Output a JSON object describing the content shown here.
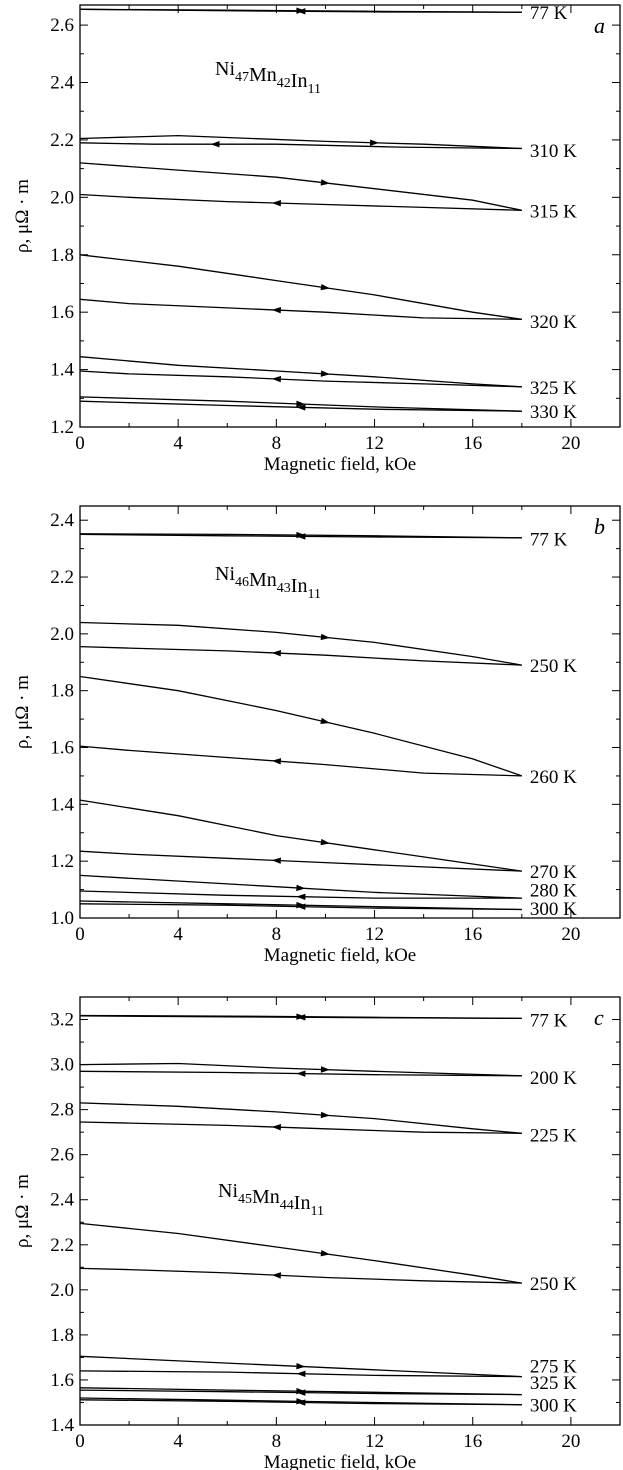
{
  "chart_data": [
    {
      "panel": "a",
      "type": "line",
      "compound": {
        "parts": [
          [
            "Ni",
            "47"
          ],
          [
            "Mn",
            "42"
          ],
          [
            "In",
            "11"
          ]
        ]
      },
      "xlabel": "Magnetic field, kOe",
      "ylabel": "ρ, μΩ · m",
      "xlim": [
        0,
        22
      ],
      "ylim": [
        1.2,
        2.67
      ],
      "xticks": [
        0,
        4,
        8,
        12,
        16,
        20
      ],
      "yticks": [
        1.2,
        1.4,
        1.6,
        1.8,
        2.0,
        2.2,
        2.4,
        2.6
      ],
      "series": [
        {
          "name": "77 K",
          "up": [
            [
              0,
              2.655
            ],
            [
              6,
              2.652
            ],
            [
              12,
              2.648
            ],
            [
              18,
              2.645
            ]
          ],
          "down": [
            [
              18,
              2.645
            ],
            [
              12,
              2.646
            ],
            [
              6,
              2.65
            ],
            [
              0,
              2.655
            ]
          ],
          "label_y": 2.645
        },
        {
          "name": "310 K",
          "up": [
            [
              0,
              2.205
            ],
            [
              4,
              2.215
            ],
            [
              10,
              2.195
            ],
            [
              14,
              2.185
            ],
            [
              18,
              2.17
            ]
          ],
          "down": [
            [
              18,
              2.17
            ],
            [
              13,
              2.175
            ],
            [
              8,
              2.185
            ],
            [
              3,
              2.185
            ],
            [
              0,
              2.19
            ]
          ],
          "label_y": 2.165
        },
        {
          "name": "315 K",
          "up": [
            [
              0,
              2.12
            ],
            [
              4,
              2.095
            ],
            [
              8,
              2.07
            ],
            [
              12,
              2.03
            ],
            [
              16,
              1.99
            ],
            [
              18,
              1.955
            ]
          ],
          "down": [
            [
              18,
              1.955
            ],
            [
              14,
              1.965
            ],
            [
              10,
              1.975
            ],
            [
              6,
              1.985
            ],
            [
              2,
              2.0
            ],
            [
              0,
              2.01
            ]
          ],
          "label_y": 1.955
        },
        {
          "name": "320 K",
          "up": [
            [
              0,
              1.8
            ],
            [
              4,
              1.76
            ],
            [
              8,
              1.71
            ],
            [
              12,
              1.66
            ],
            [
              16,
              1.6
            ],
            [
              18,
              1.575
            ]
          ],
          "down": [
            [
              18,
              1.575
            ],
            [
              14,
              1.58
            ],
            [
              10,
              1.6
            ],
            [
              6,
              1.615
            ],
            [
              2,
              1.63
            ],
            [
              0,
              1.645
            ]
          ],
          "label_y": 1.57
        },
        {
          "name": "325 K",
          "up": [
            [
              0,
              1.445
            ],
            [
              4,
              1.415
            ],
            [
              8,
              1.395
            ],
            [
              12,
              1.375
            ],
            [
              16,
              1.35
            ],
            [
              18,
              1.34
            ]
          ],
          "down": [
            [
              18,
              1.34
            ],
            [
              14,
              1.35
            ],
            [
              10,
              1.36
            ],
            [
              6,
              1.375
            ],
            [
              2,
              1.385
            ],
            [
              0,
              1.395
            ]
          ],
          "label_y": 1.34
        },
        {
          "name": "330 K",
          "up": [
            [
              0,
              1.305
            ],
            [
              6,
              1.29
            ],
            [
              12,
              1.27
            ],
            [
              18,
              1.255
            ]
          ],
          "down": [
            [
              18,
              1.255
            ],
            [
              12,
              1.262
            ],
            [
              6,
              1.275
            ],
            [
              0,
              1.29
            ]
          ],
          "label_y": 1.255
        }
      ]
    },
    {
      "panel": "b",
      "type": "line",
      "compound": {
        "parts": [
          [
            "Ni",
            "46"
          ],
          [
            "Mn",
            "43"
          ],
          [
            "In",
            "11"
          ]
        ]
      },
      "xlabel": "Magnetic field, kOe",
      "ylabel": "ρ, μΩ · m",
      "xlim": [
        0,
        22
      ],
      "ylim": [
        1.0,
        2.45
      ],
      "xticks": [
        0,
        4,
        8,
        12,
        16,
        20
      ],
      "yticks": [
        1.0,
        1.2,
        1.4,
        1.6,
        1.8,
        2.0,
        2.2,
        2.4
      ],
      "series": [
        {
          "name": "77 K",
          "up": [
            [
              0,
              2.352
            ],
            [
              6,
              2.35
            ],
            [
              12,
              2.345
            ],
            [
              18,
              2.338
            ]
          ],
          "down": [
            [
              18,
              2.338
            ],
            [
              12,
              2.341
            ],
            [
              6,
              2.345
            ],
            [
              0,
              2.35
            ]
          ],
          "label_y": 2.335
        },
        {
          "name": "250 K",
          "up": [
            [
              0,
              2.04
            ],
            [
              4,
              2.03
            ],
            [
              8,
              2.005
            ],
            [
              12,
              1.97
            ],
            [
              16,
              1.92
            ],
            [
              18,
              1.89
            ]
          ],
          "down": [
            [
              18,
              1.89
            ],
            [
              14,
              1.905
            ],
            [
              10,
              1.925
            ],
            [
              6,
              1.94
            ],
            [
              2,
              1.95
            ],
            [
              0,
              1.955
            ]
          ],
          "label_y": 1.89
        },
        {
          "name": "260 K",
          "up": [
            [
              0,
              1.85
            ],
            [
              4,
              1.8
            ],
            [
              8,
              1.73
            ],
            [
              12,
              1.65
            ],
            [
              16,
              1.56
            ],
            [
              18,
              1.5
            ]
          ],
          "down": [
            [
              18,
              1.5
            ],
            [
              14,
              1.51
            ],
            [
              10,
              1.54
            ],
            [
              6,
              1.565
            ],
            [
              2,
              1.59
            ],
            [
              0,
              1.605
            ]
          ],
          "label_y": 1.5
        },
        {
          "name": "270 K",
          "up": [
            [
              0,
              1.415
            ],
            [
              4,
              1.36
            ],
            [
              8,
              1.29
            ],
            [
              12,
              1.24
            ],
            [
              16,
              1.19
            ],
            [
              18,
              1.165
            ]
          ],
          "down": [
            [
              18,
              1.165
            ],
            [
              14,
              1.18
            ],
            [
              10,
              1.195
            ],
            [
              6,
              1.21
            ],
            [
              2,
              1.225
            ],
            [
              0,
              1.235
            ]
          ],
          "label_y": 1.165
        },
        {
          "name": "280 K",
          "up": [
            [
              0,
              1.15
            ],
            [
              6,
              1.12
            ],
            [
              12,
              1.09
            ],
            [
              18,
              1.07
            ]
          ],
          "down": [
            [
              18,
              1.07
            ],
            [
              12,
              1.07
            ],
            [
              6,
              1.08
            ],
            [
              0,
              1.095
            ]
          ],
          "label_y": 1.1
        },
        {
          "name": "300 K",
          "up": [
            [
              0,
              1.06
            ],
            [
              6,
              1.05
            ],
            [
              12,
              1.04
            ],
            [
              18,
              1.03
            ]
          ],
          "down": [
            [
              18,
              1.03
            ],
            [
              12,
              1.035
            ],
            [
              6,
              1.045
            ],
            [
              0,
              1.05
            ]
          ],
          "label_y": 1.035
        }
      ]
    },
    {
      "panel": "c",
      "type": "line",
      "compound": {
        "parts": [
          [
            "Ni",
            "45"
          ],
          [
            "Mn",
            "44"
          ],
          [
            "In",
            "11"
          ]
        ]
      },
      "xlabel": "Magnetic field, kOe",
      "ylabel": "ρ, μΩ · m",
      "xlim": [
        0,
        22
      ],
      "ylim": [
        1.4,
        3.3
      ],
      "xticks": [
        0,
        4,
        8,
        12,
        16,
        20
      ],
      "yticks": [
        1.4,
        1.6,
        1.8,
        2.0,
        2.2,
        2.4,
        2.6,
        2.8,
        3.0,
        3.2
      ],
      "series": [
        {
          "name": "77 K",
          "up": [
            [
              0,
              3.218
            ],
            [
              6,
              3.215
            ],
            [
              12,
              3.21
            ],
            [
              18,
              3.205
            ]
          ],
          "down": [
            [
              18,
              3.205
            ],
            [
              12,
              3.208
            ],
            [
              6,
              3.212
            ],
            [
              0,
              3.216
            ]
          ],
          "label_y": 3.2
        },
        {
          "name": "200 K",
          "up": [
            [
              0,
              3.0
            ],
            [
              4,
              3.005
            ],
            [
              8,
              2.985
            ],
            [
              12,
              2.97
            ],
            [
              18,
              2.95
            ]
          ],
          "down": [
            [
              18,
              2.95
            ],
            [
              12,
              2.955
            ],
            [
              6,
              2.965
            ],
            [
              0,
              2.97
            ]
          ],
          "label_y": 2.945
        },
        {
          "name": "225 K",
          "up": [
            [
              0,
              2.83
            ],
            [
              4,
              2.815
            ],
            [
              8,
              2.79
            ],
            [
              12,
              2.76
            ],
            [
              16,
              2.715
            ],
            [
              18,
              2.695
            ]
          ],
          "down": [
            [
              18,
              2.695
            ],
            [
              14,
              2.7
            ],
            [
              10,
              2.715
            ],
            [
              6,
              2.73
            ],
            [
              2,
              2.74
            ],
            [
              0,
              2.745
            ]
          ],
          "label_y": 2.69
        },
        {
          "name": "250 K",
          "up": [
            [
              0,
              2.295
            ],
            [
              4,
              2.25
            ],
            [
              8,
              2.19
            ],
            [
              12,
              2.13
            ],
            [
              16,
              2.065
            ],
            [
              18,
              2.03
            ]
          ],
          "down": [
            [
              18,
              2.03
            ],
            [
              14,
              2.04
            ],
            [
              10,
              2.055
            ],
            [
              6,
              2.075
            ],
            [
              2,
              2.09
            ],
            [
              0,
              2.095
            ]
          ],
          "label_y": 2.03
        },
        {
          "name": "275 K",
          "up": [
            [
              0,
              1.705
            ],
            [
              6,
              1.675
            ],
            [
              12,
              1.645
            ],
            [
              18,
              1.615
            ]
          ],
          "down": [
            [
              18,
              1.615
            ],
            [
              12,
              1.62
            ],
            [
              6,
              1.635
            ],
            [
              0,
              1.64
            ]
          ],
          "label_y": 1.665
        },
        {
          "name": "325 K",
          "up": [
            [
              0,
              1.565
            ],
            [
              6,
              1.555
            ],
            [
              12,
              1.545
            ],
            [
              18,
              1.535
            ]
          ],
          "down": [
            [
              18,
              1.535
            ],
            [
              12,
              1.54
            ],
            [
              6,
              1.548
            ],
            [
              0,
              1.555
            ]
          ],
          "label_y": 1.59
        },
        {
          "name": "300 K",
          "up": [
            [
              0,
              1.52
            ],
            [
              6,
              1.51
            ],
            [
              12,
              1.5
            ],
            [
              18,
              1.49
            ]
          ],
          "down": [
            [
              18,
              1.49
            ],
            [
              12,
              1.495
            ],
            [
              6,
              1.505
            ],
            [
              0,
              1.512
            ]
          ],
          "label_y": 1.49
        }
      ]
    }
  ]
}
